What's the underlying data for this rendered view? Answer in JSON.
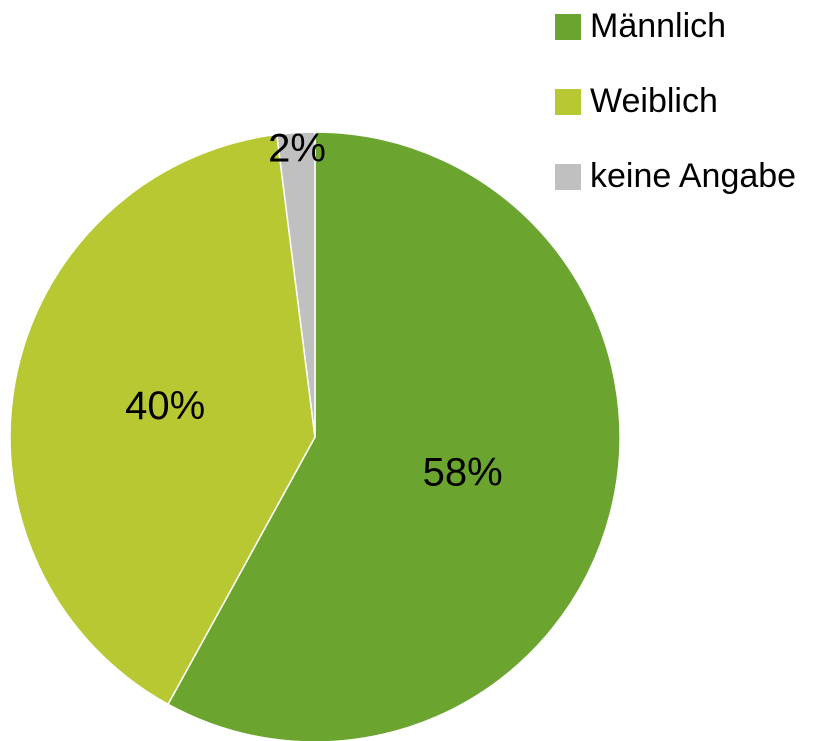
{
  "chart_data": {
    "type": "pie",
    "categories": [
      "Männlich",
      "Weiblich",
      "keine Angabe"
    ],
    "values": [
      58,
      40,
      2
    ],
    "value_labels": [
      "58%",
      "40%",
      "2%"
    ],
    "colors": [
      "#6ba530",
      "#b8c832",
      "#c0c0c0"
    ],
    "legend": "top-right"
  }
}
